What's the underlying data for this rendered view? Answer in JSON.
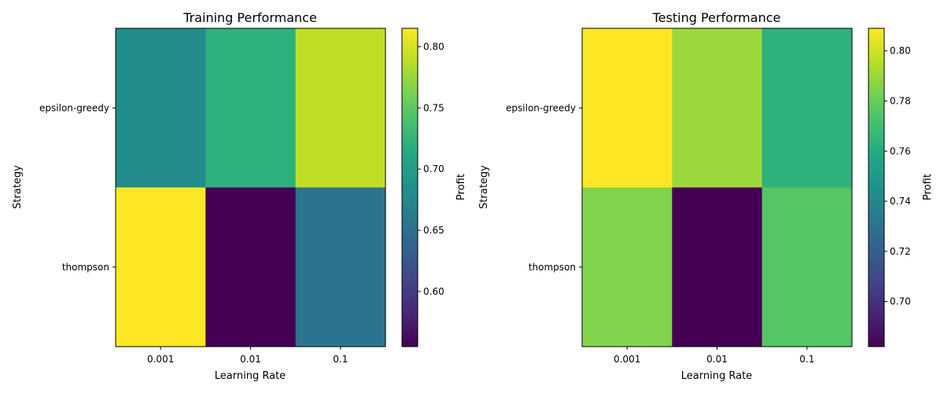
{
  "chart_data": [
    {
      "type": "heatmap",
      "title": "Training Performance",
      "xlabel": "Learning Rate",
      "ylabel": "Strategy",
      "x_categories": [
        "0.001",
        "0.01",
        "0.1"
      ],
      "y_categories": [
        "epsilon-greedy",
        "thompson"
      ],
      "values": [
        [
          0.68,
          0.72,
          0.79
        ],
        [
          0.815,
          0.555,
          0.655
        ]
      ],
      "colorbar": {
        "label": "Profit",
        "vmin": 0.555,
        "vmax": 0.815,
        "ticks": [
          "0.60",
          "0.65",
          "0.70",
          "0.75",
          "0.80"
        ],
        "tick_values": [
          0.6,
          0.65,
          0.7,
          0.75,
          0.8
        ],
        "colormap": "viridis"
      }
    },
    {
      "type": "heatmap",
      "title": "Testing Performance",
      "xlabel": "Learning Rate",
      "ylabel": "Strategy",
      "x_categories": [
        "0.001",
        "0.01",
        "0.1"
      ],
      "y_categories": [
        "epsilon-greedy",
        "thompson"
      ],
      "values": [
        [
          0.809,
          0.79,
          0.763
        ],
        [
          0.785,
          0.682,
          0.775
        ]
      ],
      "colorbar": {
        "label": "Profit",
        "vmin": 0.682,
        "vmax": 0.809,
        "ticks": [
          "0.70",
          "0.72",
          "0.74",
          "0.76",
          "0.78",
          "0.80"
        ],
        "tick_values": [
          0.7,
          0.72,
          0.74,
          0.76,
          0.78,
          0.8
        ],
        "colormap": "viridis"
      }
    }
  ]
}
